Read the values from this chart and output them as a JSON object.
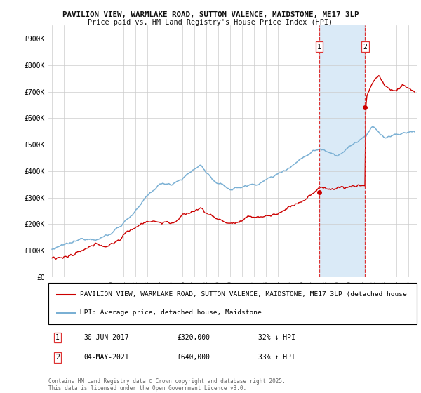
{
  "title_line1": "PAVILION VIEW, WARMLAKE ROAD, SUTTON VALENCE, MAIDSTONE, ME17 3LP",
  "title_line2": "Price paid vs. HM Land Registry's House Price Index (HPI)",
  "x_start_year": 1995,
  "x_end_year": 2025,
  "y_min": 0,
  "y_max": 900000,
  "y_ticks": [
    0,
    100000,
    200000,
    300000,
    400000,
    500000,
    600000,
    700000,
    800000,
    900000
  ],
  "y_tick_labels": [
    "£0",
    "£100K",
    "£200K",
    "£300K",
    "£400K",
    "£500K",
    "£600K",
    "£700K",
    "£800K",
    "£900K"
  ],
  "sale1_date": 2017.5,
  "sale1_price": 320000,
  "sale2_date": 2021.34,
  "sale2_price": 640000,
  "highlight_color": "#daeaf7",
  "vline_color": "#dd3333",
  "hpi_line_color": "#7ab0d4",
  "price_line_color": "#cc0000",
  "background_color": "#ffffff",
  "grid_color": "#cccccc",
  "legend_label_price": "PAVILION VIEW, WARMLAKE ROAD, SUTTON VALENCE, MAIDSTONE, ME17 3LP (detached house",
  "legend_label_hpi": "HPI: Average price, detached house, Maidstone",
  "footer_text": "Contains HM Land Registry data © Crown copyright and database right 2025.\nThis data is licensed under the Open Government Licence v3.0.",
  "sale1_display_date": "30-JUN-2017",
  "sale1_display_price": "£320,000",
  "sale1_hpi_text": "32% ↓ HPI",
  "sale2_display_date": "04-MAY-2021",
  "sale2_display_price": "£640,000",
  "sale2_hpi_text": "33% ↑ HPI"
}
